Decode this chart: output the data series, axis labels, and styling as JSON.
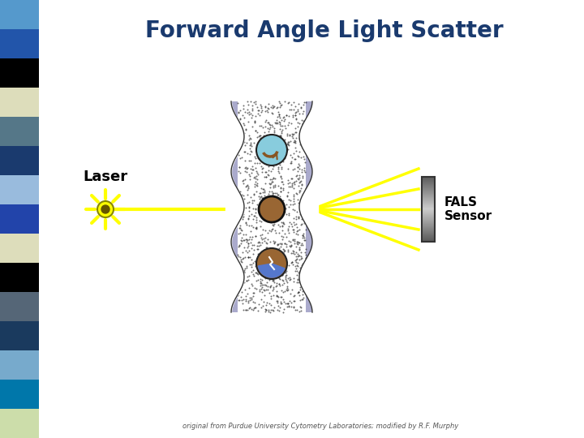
{
  "title": "Forward Angle Light Scatter",
  "title_color": "#1a3a6e",
  "title_fontsize": 20,
  "laser_label": "Laser",
  "fals_label": "FALS\nSensor",
  "footnote": "original from Purdue University Cytometry Laboratories; modified by R.F. Murphy",
  "bg_color": "#ffffff",
  "sidebar_colors": [
    "#5599cc",
    "#2255aa",
    "#000000",
    "#ddddbb",
    "#557788",
    "#1a3a6e",
    "#99bbdd",
    "#2244aa",
    "#ddddbb",
    "#000000",
    "#556677",
    "#1a3a5e",
    "#77aacc",
    "#0077aa",
    "#ccddaa"
  ],
  "laser_color": "#ffff00",
  "laser_outline": "#888800",
  "beam_color": "#ffff00",
  "scatter_color": "#ffff00",
  "sensor_color_top": "#aaaaaa",
  "sensor_color_bot": "#555555",
  "fluid_dot_color": "#333333",
  "cell1_color": "#88ccdd",
  "cell2_color": "#996633",
  "cell3_color": "#5577cc",
  "cell_outline": "#222222",
  "purple_bar_color": "#aaaacc"
}
